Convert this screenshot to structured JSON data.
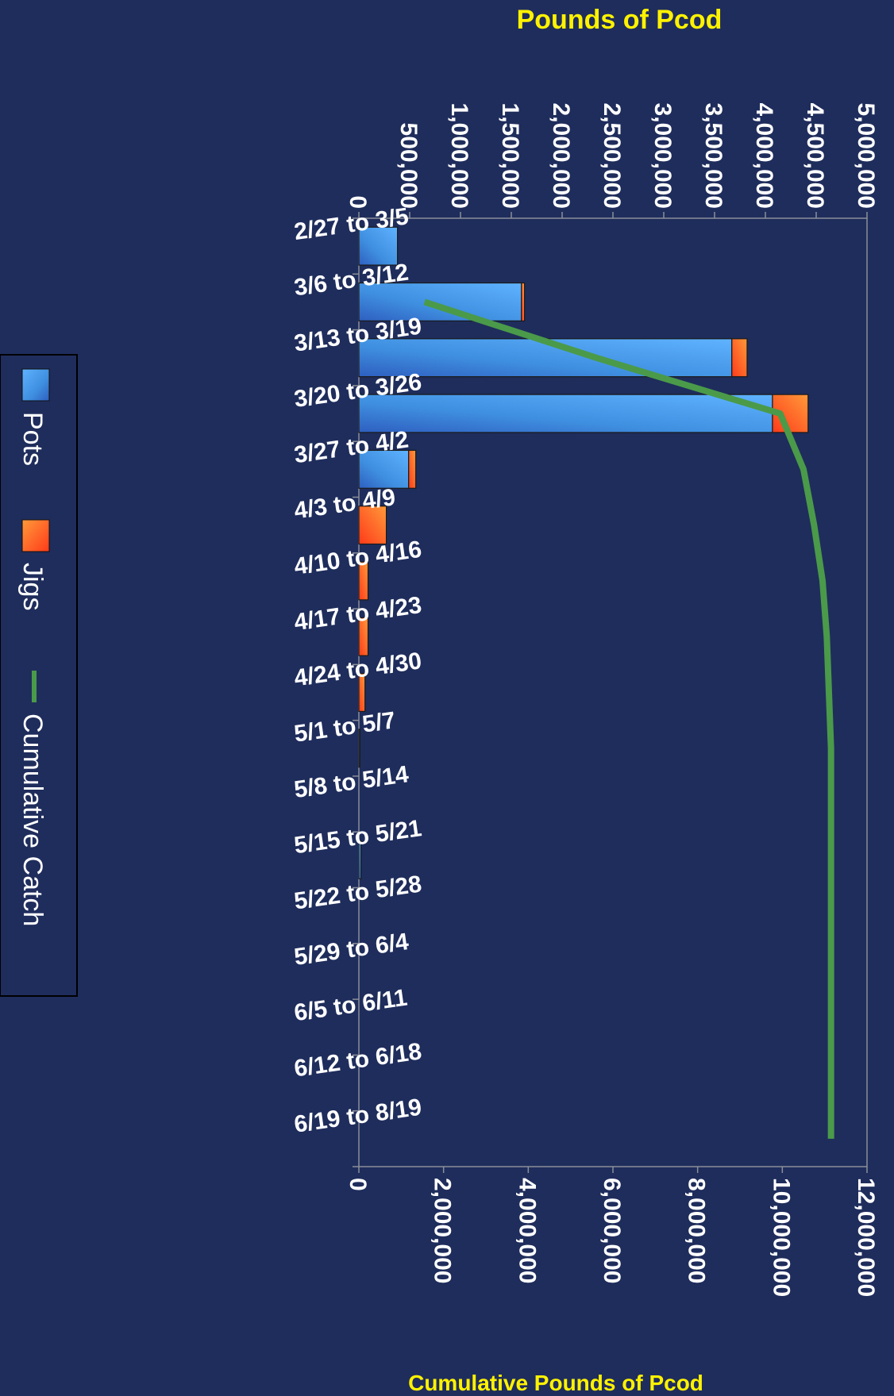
{
  "chart_data": {
    "type": "bar",
    "stacked": true,
    "orientation": "horizontal",
    "title_top_axis": "Pounds of Pcod",
    "title_bottom_axis": "Cumulative Pounds of Pcod",
    "categories": [
      "2/27 to 3/5",
      "3/6 to 3/12",
      "3/13 to 3/19",
      "3/20 to 3/26",
      "3/27 to 4/2",
      "4/3 to 4/9",
      "4/10 to 4/16",
      "4/17 to 4/23",
      "4/24 to 4/30",
      "5/1 to 5/7",
      "5/8 to 5/14",
      "5/15 to 5/21",
      "5/22 to 5/28",
      "5/29 to 6/4",
      "6/5 to 6/11",
      "6/12 to 6/18",
      "6/19 to 8/19"
    ],
    "category_labels_visible": [
      "2/27 to 3/5",
      "3/6 to 3/12",
      "3/13 to 3/19",
      "3/20 to 3/26",
      "3/27 to 4/2",
      "4/3 to 4/9",
      "4/10 to 4/16",
      "4/17 to 4/23",
      "4/24 to 4/30",
      "5/1 to 5/7",
      "5/8 to 5/14",
      "5/15 to 5/21",
      "5/22 to 5/28",
      "5/29 to 6/4",
      "6/5 to 6/11",
      "6/12 to 6/18",
      "6/19 to 8/19"
    ],
    "series": [
      {
        "name": "Pots",
        "axis": "primary",
        "color": "#3f8fe0",
        "values": [
          380000,
          1600000,
          3670000,
          4070000,
          490000,
          0,
          0,
          0,
          0,
          10000,
          0,
          20000,
          0,
          0,
          0,
          0,
          0
        ]
      },
      {
        "name": "Jigs",
        "axis": "primary",
        "color": "#ff5a1f",
        "values": [
          0,
          30000,
          150000,
          350000,
          70000,
          270000,
          90000,
          90000,
          60000,
          0,
          0,
          0,
          0,
          0,
          0,
          0,
          0
        ]
      },
      {
        "name": "Cumulative Catch",
        "axis": "secondary",
        "type": "line",
        "color": "#4a9a4a",
        "values": [
          null,
          1550000,
          5600000,
          9950000,
          10500000,
          10750000,
          10950000,
          11050000,
          11100000,
          11150000,
          11150000,
          11150000,
          11150000,
          11150000,
          11150000,
          11150000,
          11150000
        ]
      }
    ],
    "primary_axis": {
      "range": [
        0,
        5000000
      ],
      "ticks": [
        "0",
        "500,000",
        "1,000,000",
        "1,500,000",
        "2,000,000",
        "2,500,000",
        "3,000,000",
        "3,500,000",
        "4,000,000",
        "4,500,000",
        "5,000,000"
      ]
    },
    "secondary_axis": {
      "range": [
        0,
        12000000
      ],
      "ticks": [
        "0",
        "2,000,000",
        "4,000,000",
        "6,000,000",
        "8,000,000",
        "10,000,000",
        "12,000,000"
      ]
    },
    "legend": {
      "placement": "left",
      "entries": [
        "Pots",
        "Jigs",
        "Cumulative Catch"
      ]
    },
    "colors": {
      "background": "#1f2d5c",
      "plot_border": "#8a8f98",
      "title": "#fff200",
      "text": "#ffffff"
    }
  }
}
